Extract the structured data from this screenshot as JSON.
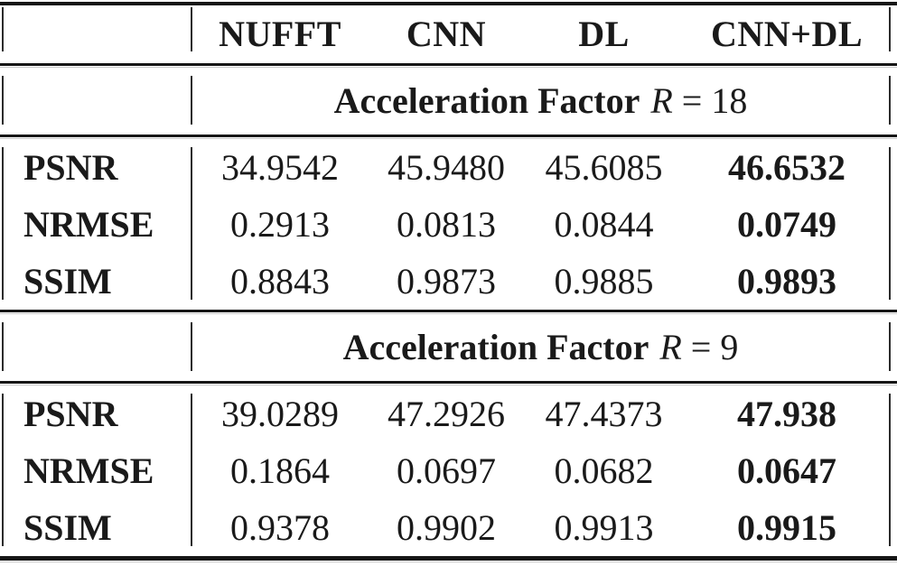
{
  "table": {
    "columns": [
      "NUFFT",
      "CNN",
      "DL",
      "CNN+DL"
    ],
    "corner": "",
    "colors": {
      "text": "#1a1a1a",
      "rule": "#161616",
      "rule_echo": "#c9c9c9",
      "background": "#ffffff"
    },
    "sections": [
      {
        "title_bold": "Acceleration Factor",
        "title_var": "R",
        "title_rest": "= 18",
        "rows": [
          {
            "label": "PSNR",
            "values": [
              "34.9542",
              "45.9480",
              "45.6085",
              "46.6532"
            ]
          },
          {
            "label": "NRMSE",
            "values": [
              "0.2913",
              "0.0813",
              "0.0844",
              "0.0749"
            ]
          },
          {
            "label": "SSIM",
            "values": [
              "0.8843",
              "0.9873",
              "0.9885",
              "0.9893"
            ]
          }
        ]
      },
      {
        "title_bold": "Acceleration Factor",
        "title_var": "R",
        "title_rest": "= 9",
        "rows": [
          {
            "label": "PSNR",
            "values": [
              "39.0289",
              "47.2926",
              "47.4373",
              "47.938"
            ]
          },
          {
            "label": "NRMSE",
            "values": [
              "0.1864",
              "0.0697",
              "0.0682",
              "0.0647"
            ]
          },
          {
            "label": "SSIM",
            "values": [
              "0.9378",
              "0.9902",
              "0.9913",
              "0.9915"
            ]
          }
        ]
      }
    ]
  }
}
